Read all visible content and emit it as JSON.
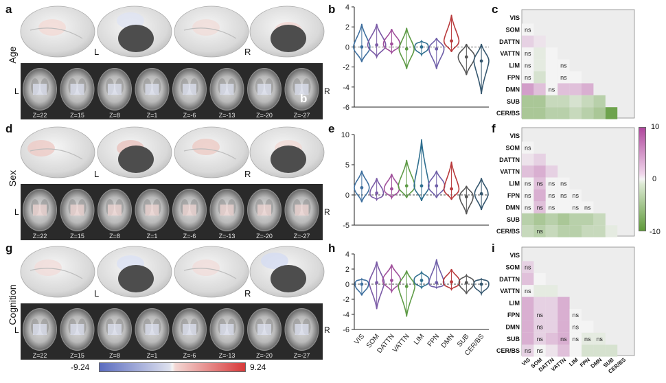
{
  "panel_letters": {
    "a": "a",
    "b": "b",
    "c": "c",
    "d": "d",
    "e": "e",
    "f": "f",
    "g": "g",
    "h": "h",
    "i": "i"
  },
  "rows": [
    "Age",
    "Sex",
    "Cognition"
  ],
  "hemisphere_labels": {
    "left": "L",
    "right": "R"
  },
  "overlay_letter": "b",
  "slice_labels": [
    "Z=22",
    "Z=15",
    "Z=8",
    "Z=1",
    "Z=-6",
    "Z=-13",
    "Z=-20",
    "Z=-27"
  ],
  "colorbar": {
    "min_label": "-9.24",
    "max_label": "9.24",
    "low_color": "#5b6cbf",
    "mid_color": "#f4f4f4",
    "high_color": "#d83a3a"
  },
  "network_colorbar": {
    "top_label": "10",
    "mid_label": "0",
    "bottom_label": "-10",
    "top_color": "#b0479d",
    "bottom_color": "#5f9a3a"
  },
  "networks": [
    "VIS",
    "SOM",
    "DATTN",
    "VATTN",
    "LIM",
    "FPN",
    "DMN",
    "SUB",
    "CER/BS"
  ],
  "network_colors": [
    "#3e6f9e",
    "#7a5aa6",
    "#a04f9b",
    "#5e9b46",
    "#2f6f8f",
    "#6e5ea8",
    "#b8393b",
    "#555555",
    "#34566e"
  ],
  "ns_label": "ns",
  "chart_data": [
    {
      "type": "violin",
      "panel": "b",
      "row": "Age",
      "ylim": [
        -6,
        4
      ],
      "yticks": [
        "4",
        "2",
        "0",
        "-2",
        "-4",
        "-6"
      ],
      "yticks_values": [
        4,
        2,
        0,
        -2,
        -4,
        -6
      ],
      "categories": [
        "VIS",
        "SOM",
        "DATTN",
        "VATTN",
        "LIM",
        "FPN",
        "DMN",
        "SUB",
        "CER/BS"
      ],
      "min": [
        -1.5,
        -1.0,
        -0.6,
        -2.2,
        -0.8,
        -2.2,
        -0.5,
        -2.8,
        -4.7
      ],
      "max": [
        2.3,
        2.3,
        1.8,
        1.9,
        0.6,
        0.9,
        3.2,
        0.3,
        0.3
      ],
      "median": [
        0.0,
        0.2,
        0.3,
        -0.2,
        0.0,
        -0.2,
        0.6,
        -1.0,
        -1.4
      ],
      "width": [
        0.55,
        0.6,
        0.55,
        0.5,
        0.45,
        0.5,
        0.5,
        0.55,
        0.5
      ]
    },
    {
      "type": "violin",
      "panel": "e",
      "row": "Sex",
      "ylim": [
        -5,
        10
      ],
      "yticks": [
        "10",
        "5",
        "0",
        "-5"
      ],
      "yticks_values": [
        10,
        5,
        0,
        -5
      ],
      "categories": [
        "VIS",
        "SOM",
        "DATTN",
        "VATTN",
        "LIM",
        "FPN",
        "DMN",
        "SUB",
        "CER/BS"
      ],
      "min": [
        -1.2,
        -0.8,
        -0.5,
        -0.5,
        -1.0,
        -0.5,
        -0.8,
        -3.2,
        -2.5
      ],
      "max": [
        4.0,
        2.8,
        3.5,
        5.8,
        9.2,
        4.0,
        5.5,
        1.5,
        2.8
      ],
      "median": [
        1.2,
        0.3,
        1.0,
        1.5,
        1.5,
        1.5,
        1.0,
        -0.3,
        0.2
      ],
      "width": [
        0.5,
        0.45,
        0.5,
        0.55,
        0.5,
        0.55,
        0.5,
        0.45,
        0.45
      ]
    },
    {
      "type": "violin",
      "panel": "h",
      "row": "Cognition",
      "ylim": [
        -6,
        4
      ],
      "yticks": [
        "4",
        "2",
        "0",
        "-2",
        "-4",
        "-6"
      ],
      "yticks_values": [
        4,
        2,
        0,
        -2,
        -4,
        -6
      ],
      "categories": [
        "VIS",
        "SOM",
        "DATTN",
        "VATTN",
        "LIM",
        "FPN",
        "DMN",
        "SUB",
        "CER/BS"
      ],
      "min": [
        -1.5,
        -3.3,
        -1.0,
        -4.3,
        -0.5,
        -0.5,
        -0.7,
        -1.3,
        -1.3
      ],
      "max": [
        0.7,
        3.0,
        2.6,
        1.8,
        1.6,
        3.3,
        2.0,
        1.2,
        0.7
      ],
      "median": [
        0.0,
        0.2,
        0.5,
        -0.3,
        0.5,
        0.2,
        0.3,
        0.2,
        0.0
      ],
      "width": [
        0.45,
        0.5,
        0.6,
        0.55,
        0.5,
        0.5,
        0.55,
        0.5,
        0.5
      ]
    },
    {
      "type": "heatmap",
      "panel": "c",
      "row": "Age",
      "vlim": [
        -10,
        10
      ],
      "rows": [
        "VIS",
        "SOM",
        "DATTN",
        "VATTN",
        "LIM",
        "FPN",
        "DMN",
        "SUB",
        "CER/BS"
      ],
      "values": [
        [
          0
        ],
        [
          0,
          0
        ],
        [
          2,
          1,
          0
        ],
        [
          0,
          -1,
          0,
          0
        ],
        [
          0,
          -1,
          0,
          0,
          0
        ],
        [
          0,
          -2,
          0,
          0,
          0,
          0
        ],
        [
          5,
          3,
          0,
          3,
          3,
          4,
          0
        ],
        [
          -5,
          -5,
          -3,
          -3,
          -2,
          -3,
          -4,
          -8
        ],
        [
          -5,
          -5,
          -4,
          -4,
          -3,
          -4,
          -5,
          -9,
          -1
        ]
      ],
      "ns": [
        [
          false
        ],
        [
          true,
          false
        ],
        [
          false,
          false,
          false
        ],
        [
          true,
          false,
          false,
          false
        ],
        [
          true,
          false,
          false,
          true,
          false
        ],
        [
          true,
          false,
          false,
          true,
          false,
          false
        ],
        [
          false,
          false,
          true,
          false,
          false,
          false,
          false
        ],
        [
          false,
          false,
          false,
          false,
          false,
          false,
          false,
          false
        ],
        [
          false,
          false,
          false,
          false,
          false,
          false,
          false,
          false,
          false
        ]
      ]
    },
    {
      "type": "heatmap",
      "panel": "f",
      "row": "Sex",
      "vlim": [
        -10,
        10
      ],
      "rows": [
        "VIS",
        "SOM",
        "DATTN",
        "VATTN",
        "LIM",
        "FPN",
        "DMN",
        "SUB",
        "CER/BS"
      ],
      "values": [
        [
          0
        ],
        [
          0,
          0
        ],
        [
          1,
          2,
          0
        ],
        [
          3,
          4,
          2,
          0
        ],
        [
          0,
          3,
          0,
          0,
          0
        ],
        [
          0,
          4,
          0,
          0,
          0,
          0
        ],
        [
          0,
          3,
          0,
          0,
          0,
          0,
          0
        ],
        [
          -4,
          -5,
          -4,
          -5,
          -4,
          -4,
          -3,
          -3
        ],
        [
          -3,
          -4,
          -3,
          -4,
          -4,
          -3,
          -3,
          -1,
          2
        ]
      ],
      "ns": [
        [
          false
        ],
        [
          true,
          false
        ],
        [
          false,
          false,
          false
        ],
        [
          false,
          false,
          false,
          false
        ],
        [
          true,
          true,
          true,
          true,
          false
        ],
        [
          true,
          false,
          true,
          true,
          true,
          false
        ],
        [
          true,
          true,
          true,
          false,
          true,
          true,
          false
        ],
        [
          false,
          false,
          false,
          false,
          false,
          false,
          false,
          false
        ],
        [
          false,
          true,
          false,
          false,
          false,
          false,
          false,
          false,
          false
        ]
      ]
    },
    {
      "type": "heatmap",
      "panel": "i",
      "row": "Cognition",
      "vlim": [
        -10,
        10
      ],
      "rows": [
        "VIS",
        "SOM",
        "DATTN",
        "VATTN",
        "LIM",
        "FPN",
        "DMN",
        "SUB",
        "CER/BS"
      ],
      "values": [
        [
          0
        ],
        [
          2,
          0
        ],
        [
          3,
          0,
          0
        ],
        [
          0,
          -1,
          -1,
          0
        ],
        [
          4,
          2,
          2,
          4,
          0
        ],
        [
          4,
          2,
          2,
          4,
          0,
          0
        ],
        [
          4,
          2,
          2,
          4,
          0,
          0,
          0
        ],
        [
          4,
          2,
          3,
          4,
          0,
          -1,
          -1,
          0
        ],
        [
          2,
          0,
          1,
          3,
          0,
          -2,
          -2,
          -2,
          0
        ]
      ],
      "ns": [
        [
          false
        ],
        [
          true,
          false
        ],
        [
          false,
          false,
          false
        ],
        [
          true,
          false,
          false,
          false
        ],
        [
          false,
          false,
          false,
          false,
          false
        ],
        [
          false,
          true,
          false,
          false,
          true,
          false
        ],
        [
          false,
          true,
          false,
          false,
          true,
          false,
          false
        ],
        [
          false,
          true,
          false,
          true,
          true,
          true,
          true,
          false
        ],
        [
          true,
          true,
          false,
          false,
          false,
          false,
          false,
          false,
          false
        ]
      ]
    }
  ]
}
